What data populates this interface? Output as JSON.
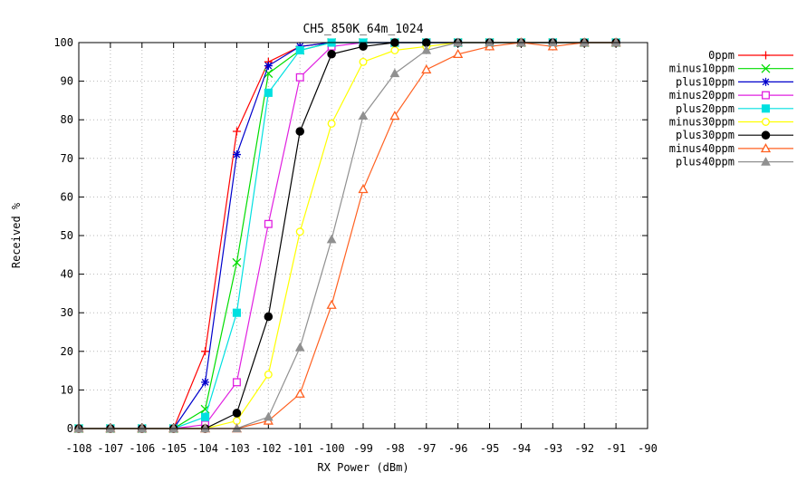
{
  "chart_data": {
    "type": "line",
    "title": "CH5_850K_64m_1024",
    "xlabel": "RX Power (dBm)",
    "ylabel": "Received %",
    "xlim": [
      -108,
      -90
    ],
    "ylim": [
      0,
      100
    ],
    "xticks": [
      -108,
      -107,
      -106,
      -105,
      -104,
      -103,
      -102,
      -101,
      -100,
      -99,
      -98,
      -97,
      -96,
      -95,
      -94,
      -93,
      -92,
      -91,
      -90
    ],
    "xtick_labels": [
      "-108",
      "-107",
      "-106",
      "-105",
      "-104",
      "-103",
      "-102",
      "-101",
      "-100",
      "-99",
      "-98",
      "-97",
      "-96",
      "-95",
      "-94",
      "-93",
      "-92",
      "-91",
      "-90"
    ],
    "yticks": [
      0,
      10,
      20,
      30,
      40,
      50,
      60,
      70,
      80,
      90,
      100
    ],
    "ytick_labels": [
      "0",
      "10",
      "20",
      "30",
      "40",
      "50",
      "60",
      "70",
      "80",
      "90",
      "100"
    ],
    "grid": true,
    "legend_position": "outside-right",
    "x": [
      -108,
      -107,
      -106,
      -105,
      -104,
      -103,
      -102,
      -101,
      -100,
      -99,
      -98,
      -97,
      -96,
      -95,
      -94,
      -93,
      -92,
      -91
    ],
    "series": [
      {
        "name": "0ppm",
        "color": "#ff0000",
        "marker": "plus",
        "values": [
          0,
          0,
          0,
          0,
          20,
          77,
          95,
          99,
          100,
          100,
          100,
          100,
          100,
          100,
          100,
          100,
          100,
          100
        ]
      },
      {
        "name": "minus10ppm",
        "color": "#00dd00",
        "marker": "x",
        "values": [
          0,
          0,
          0,
          0,
          5,
          43,
          92,
          98,
          100,
          100,
          100,
          100,
          100,
          100,
          100,
          100,
          100,
          100
        ]
      },
      {
        "name": "plus10ppm",
        "color": "#0000cc",
        "marker": "star",
        "values": [
          0,
          0,
          0,
          0,
          12,
          71,
          94,
          99,
          100,
          100,
          100,
          100,
          100,
          100,
          100,
          100,
          100,
          100
        ]
      },
      {
        "name": "minus20ppm",
        "color": "#e020e0",
        "marker": "square-open",
        "values": [
          0,
          0,
          0,
          0,
          1,
          12,
          53,
          91,
          99,
          100,
          100,
          100,
          100,
          100,
          100,
          100,
          100,
          100
        ]
      },
      {
        "name": "plus20ppm",
        "color": "#00e0e0",
        "marker": "square-filled",
        "values": [
          0,
          0,
          0,
          0,
          3,
          30,
          87,
          98,
          100,
          100,
          100,
          100,
          100,
          100,
          100,
          100,
          100,
          100
        ]
      },
      {
        "name": "minus30ppm",
        "color": "#ffff00",
        "marker": "circle-open",
        "values": [
          0,
          0,
          0,
          0,
          0,
          2,
          14,
          51,
          79,
          95,
          98,
          99,
          100,
          100,
          100,
          100,
          100,
          100
        ]
      },
      {
        "name": "plus30ppm",
        "color": "#000000",
        "marker": "circle-filled",
        "values": [
          0,
          0,
          0,
          0,
          0,
          4,
          29,
          77,
          97,
          99,
          100,
          100,
          100,
          100,
          100,
          100,
          100,
          100
        ]
      },
      {
        "name": "minus40ppm",
        "color": "#ff6020",
        "marker": "triangle-open",
        "values": [
          0,
          0,
          0,
          0,
          0,
          0,
          2,
          9,
          32,
          62,
          81,
          93,
          97,
          99,
          100,
          99,
          100,
          100
        ]
      },
      {
        "name": "plus40ppm",
        "color": "#909090",
        "marker": "triangle-filled",
        "values": [
          0,
          0,
          0,
          0,
          0,
          0,
          3,
          21,
          49,
          81,
          92,
          98,
          100,
          100,
          100,
          100,
          100,
          100
        ]
      }
    ]
  }
}
